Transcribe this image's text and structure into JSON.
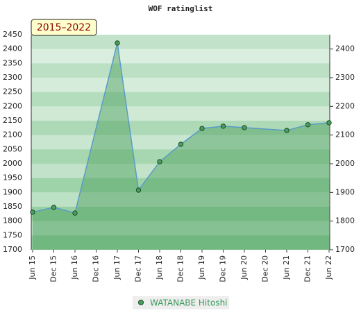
{
  "chart_data": {
    "type": "area",
    "title": "WOF ratinglist",
    "annotation": "2015–2022",
    "categories": [
      "Jun 15",
      "Dec 15",
      "Jun 16",
      "Dec 16",
      "Jun 17",
      "Dec 17",
      "Jun 18",
      "Dec 18",
      "Jun 19",
      "Dec 19",
      "Jun 20",
      "Dec 20",
      "Jun 21",
      "Dec 21",
      "Jun 22"
    ],
    "series": [
      {
        "name": "WATANABE Hitoshi",
        "color": "#4a9e5c",
        "line_color": "#5a9bc8",
        "x": [
          "Jun 15",
          "Dec 15",
          "Jun 16",
          "Jun 17",
          "Dec 17",
          "Jun 18",
          "Dec 18",
          "Jun 19",
          "Dec 19",
          "Jun 20",
          "Jun 21",
          "Dec 21",
          "Jun 22"
        ],
        "values": [
          1831,
          1848,
          1828,
          2421,
          1908,
          2007,
          2068,
          2123,
          2131,
          2126,
          2116,
          2136,
          2143
        ]
      }
    ],
    "ylim": [
      1700,
      2450
    ],
    "yticks": [
      1700,
      1750,
      1800,
      1850,
      1900,
      1950,
      2000,
      2050,
      2100,
      2150,
      2200,
      2250,
      2300,
      2350,
      2400,
      2450
    ],
    "y2lim": [
      1700,
      2450
    ],
    "y2ticks": [
      1700,
      1800,
      1900,
      2000,
      2100,
      2200,
      2300,
      2400
    ],
    "grid": true
  }
}
